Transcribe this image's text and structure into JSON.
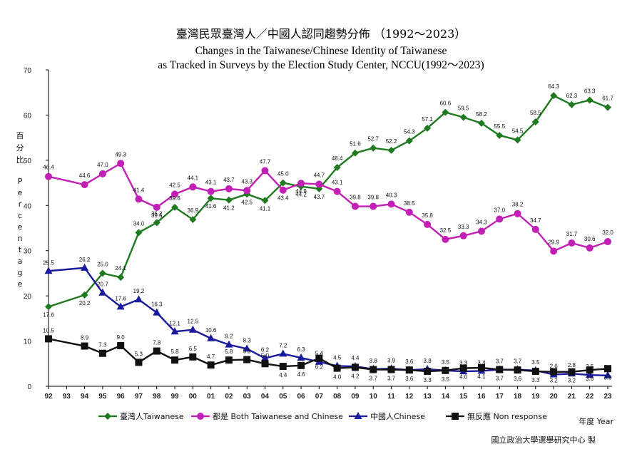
{
  "title_zh": "臺灣民眾臺灣人／中國人認同趨勢分佈 （1992～2023）",
  "title_en_1": "Changes in the Taiwanese/Chinese Identity of Taiwanese",
  "title_en_2": "as Tracked in Surveys by the Election Study Center, NCCU(1992～2023)",
  "y_label_zh": [
    "百",
    "分",
    "比"
  ],
  "y_label_en": [
    "P",
    "e",
    "r",
    "c",
    "e",
    "n",
    "t",
    "a",
    "g",
    "e"
  ],
  "x_axis_label": "年度 Year",
  "source": "國立政治大學選舉研究中心 製",
  "colors": {
    "taiwanese": "#1f7a1f",
    "both": "#c21fb5",
    "chinese": "#1a1a9e",
    "nonresponse": "#111111"
  },
  "chart_data": {
    "type": "line",
    "ylim": [
      0,
      70
    ],
    "yticks": [
      0,
      10,
      20,
      30,
      40,
      50,
      60,
      70
    ],
    "grid": false,
    "legend_position": "bottom",
    "categories": [
      "92",
      "93",
      "94",
      "95",
      "96",
      "97",
      "98",
      "99",
      "00",
      "01",
      "02",
      "03",
      "04",
      "05",
      "06",
      "07",
      "08",
      "09",
      "10",
      "11",
      "12",
      "13",
      "14",
      "15",
      "16",
      "17",
      "18",
      "19",
      "20",
      "21",
      "22",
      "23"
    ],
    "series": [
      {
        "key": "taiwanese",
        "name": "臺灣人Taiwanese",
        "marker": "diamond",
        "values": [
          17.6,
          null,
          20.2,
          25.0,
          24.1,
          34.0,
          36.2,
          39.6,
          36.9,
          41.6,
          41.2,
          42.5,
          41.1,
          45.0,
          44.2,
          43.7,
          48.4,
          51.6,
          52.7,
          52.2,
          54.3,
          57.1,
          60.6,
          59.5,
          58.2,
          55.5,
          54.5,
          58.5,
          64.3,
          62.3,
          63.3,
          61.7
        ]
      },
      {
        "key": "both",
        "name": "都是 Both Taiwanese and Chinese",
        "marker": "circle",
        "values": [
          46.4,
          null,
          44.6,
          47.0,
          49.3,
          41.4,
          39.6,
          42.5,
          44.1,
          43.1,
          43.7,
          43.3,
          47.7,
          43.4,
          44.9,
          44.7,
          43.1,
          39.8,
          39.8,
          40.3,
          38.5,
          35.8,
          32.5,
          33.3,
          34.3,
          37.0,
          38.2,
          34.7,
          29.9,
          31.7,
          30.6,
          32.0
        ]
      },
      {
        "key": "chinese",
        "name": "中國人Chinese",
        "marker": "triangle",
        "values": [
          25.5,
          null,
          26.2,
          20.7,
          17.6,
          19.2,
          16.3,
          12.1,
          12.5,
          10.6,
          9.2,
          8.3,
          6.2,
          7.2,
          6.3,
          5.4,
          4.5,
          4.4,
          3.8,
          3.9,
          3.6,
          3.8,
          3.5,
          3.3,
          3.4,
          3.7,
          3.7,
          3.5,
          2.6,
          2.8,
          2.5,
          2.4
        ]
      },
      {
        "key": "nonresponse",
        "name": "無反應 Non response",
        "marker": "square",
        "values": [
          10.5,
          null,
          8.9,
          7.3,
          9.0,
          5.3,
          7.8,
          5.8,
          6.5,
          4.7,
          5.8,
          5.9,
          5.0,
          4.4,
          4.6,
          6.2,
          4.0,
          4.2,
          3.7,
          3.7,
          3.6,
          3.3,
          3.5,
          4.0,
          4.1,
          3.7,
          3.6,
          3.3,
          3.2,
          3.2,
          3.6,
          3.9
        ]
      }
    ]
  }
}
